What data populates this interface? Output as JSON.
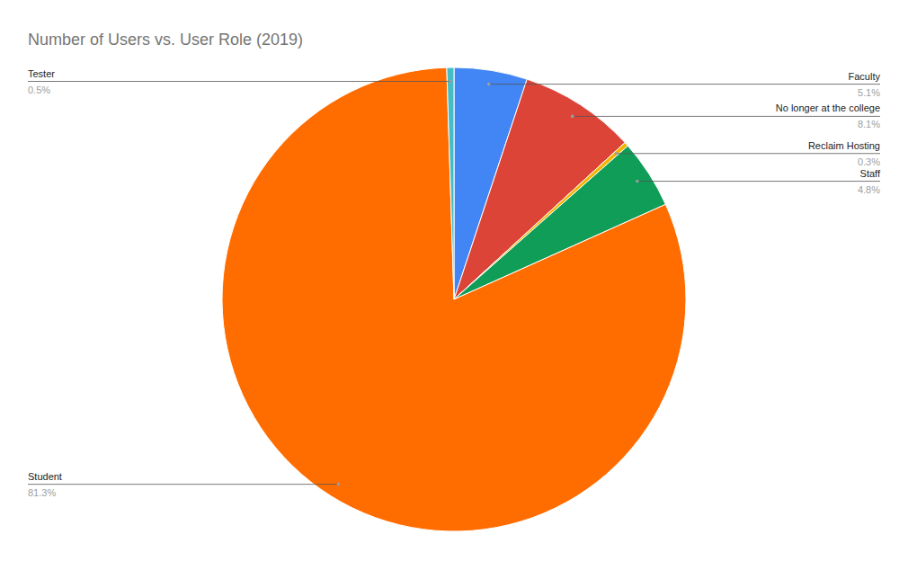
{
  "chart_data": {
    "type": "pie",
    "title": "Number of Users vs. User Role (2019)",
    "categories": [
      "Faculty",
      "No longer at the college",
      "Reclaim Hosting",
      "Staff",
      "Student",
      "Tester"
    ],
    "values": [
      5.1,
      8.1,
      0.3,
      4.8,
      81.3,
      0.5
    ],
    "value_labels": [
      "5.1%",
      "8.1%",
      "0.3%",
      "4.8%",
      "81.3%",
      "0.5%"
    ],
    "colors": [
      "#4285f4",
      "#db4437",
      "#f4b400",
      "#0f9d58",
      "#ff6d00",
      "#46bdc6"
    ],
    "data_labels": true
  }
}
